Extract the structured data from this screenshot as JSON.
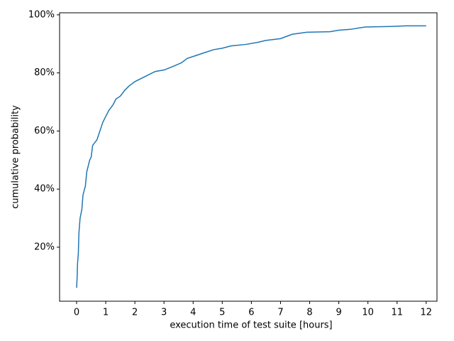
{
  "chart_data": {
    "type": "line",
    "x_label": "execution time of test suite [hours]",
    "y_label": "cumulative probability",
    "x": [
      0,
      0.02,
      0.03,
      0.06,
      0.08,
      0.12,
      0.18,
      0.22,
      0.3,
      0.35,
      0.45,
      0.5,
      0.55,
      0.7,
      0.8,
      0.9,
      1,
      1.1,
      1.25,
      1.35,
      1.5,
      1.65,
      1.8,
      2,
      2.2,
      2.4,
      2.7,
      3,
      3.3,
      3.6,
      3.8,
      4.1,
      4.4,
      4.7,
      5,
      5.3,
      5.8,
      6.2,
      6.5,
      7,
      7.4,
      7.9,
      8.7,
      9,
      9.4,
      9.9,
      10.8,
      11.3,
      12
    ],
    "series": [
      {
        "color": "#1f77b4",
        "values": [
          6,
          10,
          14,
          18,
          25,
          30,
          33,
          38,
          41,
          46,
          50,
          51,
          55,
          57,
          60,
          63,
          65,
          67,
          69,
          71,
          72,
          74,
          75.5,
          77,
          78,
          79,
          80.5,
          81,
          82.2,
          83.5,
          85,
          86,
          87,
          88,
          88.5,
          89.3,
          89.8,
          90.5,
          91.2,
          91.8,
          93.3,
          94,
          94.2,
          94.7,
          95,
          95.8,
          96,
          96.2,
          96.2
        ]
      }
    ],
    "xlim": [
      -0.584,
      12.37
    ],
    "ylim": [
      1.4,
      100.7
    ],
    "xticks": [
      0,
      1,
      2,
      3,
      4,
      5,
      6,
      7,
      8,
      9,
      10,
      11,
      12
    ],
    "yticks": [
      {
        "value": 20,
        "label": "20%"
      },
      {
        "value": 40,
        "label": "40%"
      },
      {
        "value": 60,
        "label": "60%"
      },
      {
        "value": 80,
        "label": "80%"
      },
      {
        "value": 100,
        "label": "100%"
      }
    ]
  }
}
